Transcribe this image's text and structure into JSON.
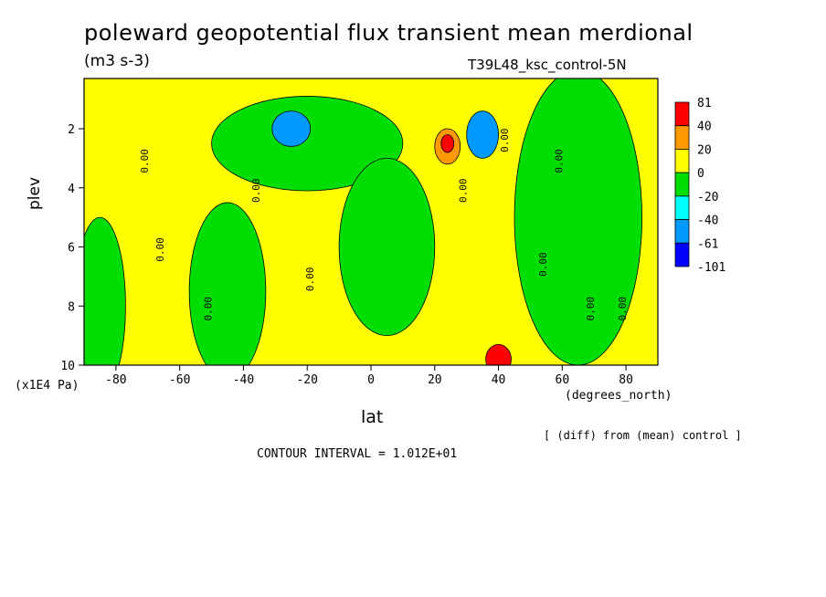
{
  "header": {
    "title": "poleward geopotential flux transient mean merdional",
    "units": "(m3 s-3)",
    "run": "T39L48_ksc_control-5N"
  },
  "axes": {
    "ylabel": "plev",
    "yunits": "(x1E4 Pa)",
    "xlabel": "lat",
    "xunits": "(degrees_north)"
  },
  "footer": {
    "diff_note": "[ (diff) from (mean) control ]",
    "contour_interval": "CONTOUR INTERVAL = 1.012E+01"
  },
  "chart_data": {
    "type": "heatmap",
    "title": "poleward geopotential flux transient mean merdional",
    "xlabel": "lat",
    "ylabel": "plev",
    "x_ticks": [
      "-80",
      "-60",
      "-40",
      "-20",
      "0",
      "20",
      "40",
      "60",
      "80"
    ],
    "x_tick_values": [
      -80,
      -60,
      -40,
      -20,
      0,
      20,
      40,
      60,
      80
    ],
    "y_ticks": [
      "2",
      "4",
      "6",
      "8",
      "10"
    ],
    "y_tick_values": [
      2,
      4,
      6,
      8,
      10
    ],
    "xlim": [
      -90,
      90
    ],
    "ylim": [
      10,
      0.3
    ],
    "contour_interval": 10.12,
    "contour_label": "0.00",
    "colorbar": {
      "labels": [
        "81",
        "40",
        "20",
        "0",
        "-20",
        "-40",
        "-61",
        "-101"
      ],
      "colors": [
        "#ff0000",
        "#ff9900",
        "#ffff00",
        "#00dd00",
        "#00ffff",
        "#0099ff",
        "#0000ff"
      ]
    },
    "background_level": "#ffff00",
    "features": [
      {
        "level": "#00dd00",
        "lat": -85,
        "plev": 8,
        "dlat": 8,
        "dplev": 3
      },
      {
        "level": "#00dd00",
        "lat": -45,
        "plev": 7.5,
        "dlat": 12,
        "dplev": 3
      },
      {
        "level": "#00dd00",
        "lat": -20,
        "plev": 2.5,
        "dlat": 30,
        "dplev": 1.6
      },
      {
        "level": "#0099ff",
        "lat": -25,
        "plev": 2,
        "dlat": 6,
        "dplev": 0.6
      },
      {
        "level": "#00dd00",
        "lat": 5,
        "plev": 6,
        "dlat": 15,
        "dplev": 3
      },
      {
        "level": "#ff9900",
        "lat": 24,
        "plev": 2.6,
        "dlat": 4,
        "dplev": 0.6
      },
      {
        "level": "#ff0000",
        "lat": 24,
        "plev": 2.5,
        "dlat": 2,
        "dplev": 0.3
      },
      {
        "level": "#00dd00",
        "lat": 65,
        "plev": 5,
        "dlat": 20,
        "dplev": 5
      },
      {
        "level": "#0099ff",
        "lat": 35,
        "plev": 2.2,
        "dlat": 5,
        "dplev": 0.8
      },
      {
        "level": "#ff0000",
        "lat": 40,
        "plev": 9.8,
        "dlat": 4,
        "dplev": 0.5
      }
    ]
  }
}
